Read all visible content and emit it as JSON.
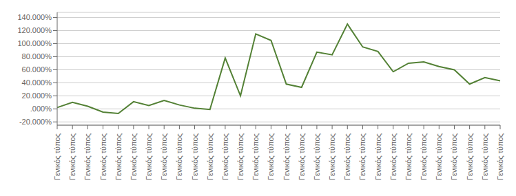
{
  "chart_data": {
    "type": "line",
    "categories": [
      "Γενικός τύπος",
      "Γενικός τύπος",
      "Γενικός τύπος",
      "Γενικός τύπος",
      "Γενικός τύπος",
      "Γενικός τύπος",
      "Γενικός τύπος",
      "Γενικός τύπος",
      "Γενικός τύπος",
      "Γενικός τύπος",
      "Γενικός τύπος",
      "Γενικός τύπος",
      "Γενικός τύπος",
      "Γενικός τύπος",
      "Γενικός τύπος",
      "Γενικός τύπος",
      "Γενικός τύπος",
      "Γενικός τύπος",
      "Γενικός τύπος",
      "Γενικός τύπος",
      "Γενικός τύπος",
      "Γενικός τύπος",
      "Γενικός τύπος",
      "Γενικός τύπος",
      "Γενικός τύπος",
      "Γενικός τύπος",
      "Γενικός τύπος",
      "Γενικός τύπος",
      "Γενικός τύπος",
      "Γενικός τύπος"
    ],
    "values": [
      2,
      10,
      4,
      -5,
      -7,
      11,
      5,
      13,
      6,
      1,
      -1,
      78,
      20,
      115,
      105,
      38,
      33,
      87,
      83,
      130,
      95,
      88,
      57,
      70,
      72,
      65,
      60,
      38,
      48,
      43
    ],
    "color": "#538135",
    "ylim": [
      -25,
      148
    ],
    "yticks": [
      {
        "value": 140,
        "label": "140.000%"
      },
      {
        "value": 120,
        "label": "120.000%"
      },
      {
        "value": 100,
        "label": "100.000%"
      },
      {
        "value": 80,
        "label": "80.000%"
      },
      {
        "value": 60,
        "label": "60.000%"
      },
      {
        "value": 40,
        "label": "40.000%"
      },
      {
        "value": 20,
        "label": "20.000%"
      },
      {
        "value": 0,
        "label": ".000%"
      },
      {
        "value": -20,
        "label": "-20.000%"
      }
    ],
    "grid": true
  }
}
